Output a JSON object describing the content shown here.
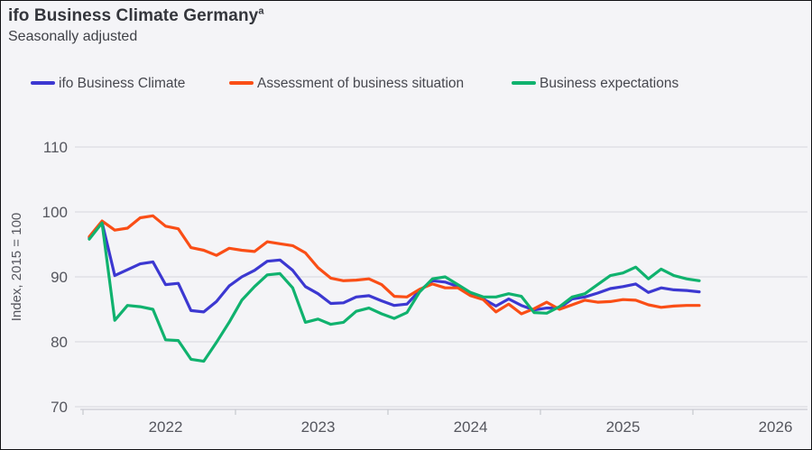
{
  "header": {
    "title": "ifo Business Climate Germany",
    "title_footnote_marker": "a",
    "subtitle": "Seasonally adjusted"
  },
  "colors": {
    "background": "#f4f4f7",
    "gridline": "#dcdce1",
    "axis_line": "#c9cbd1",
    "tick_label": "#55565e",
    "title_text": "#34363c"
  },
  "chart_data": {
    "type": "line",
    "title": "ifo Business Climate Germany",
    "subtitle": "Seasonally adjusted",
    "ylabel": "Index, 2015 = 100",
    "xlabel": "",
    "ylim": [
      70,
      113
    ],
    "y_ticks": [
      110,
      100,
      90,
      80,
      70
    ],
    "x_ticks": [
      "2022",
      "2023",
      "2024",
      "2025",
      "2026"
    ],
    "grid": "horizontal-only",
    "legend_position": "top",
    "x_frequency": "monthly",
    "months": [
      "2022-01",
      "2022-02",
      "2022-03",
      "2022-04",
      "2022-05",
      "2022-06",
      "2022-07",
      "2022-08",
      "2022-09",
      "2022-10",
      "2022-11",
      "2022-12",
      "2023-01",
      "2023-02",
      "2023-03",
      "2023-04",
      "2023-05",
      "2023-06",
      "2023-07",
      "2023-08",
      "2023-09",
      "2023-10",
      "2023-11",
      "2023-12",
      "2024-01",
      "2024-02",
      "2024-03",
      "2024-04",
      "2024-05",
      "2024-06",
      "2024-07",
      "2024-08",
      "2024-09",
      "2024-10",
      "2024-11",
      "2024-12",
      "2025-01",
      "2025-02",
      "2025-03",
      "2025-04",
      "2025-05",
      "2025-06",
      "2025-07",
      "2025-08",
      "2025-09",
      "2025-10",
      "2025-11",
      "2025-12",
      "2026-01"
    ],
    "series": [
      {
        "name": "ifo Business Climate",
        "color": "#3c38d1",
        "values": [
          96.0,
          98.4,
          90.2,
          91.1,
          92.0,
          92.3,
          88.8,
          89.0,
          84.8,
          84.6,
          86.2,
          88.6,
          90.0,
          91.0,
          92.4,
          92.6,
          91.0,
          88.5,
          87.4,
          85.9,
          86.0,
          86.9,
          87.1,
          86.3,
          85.6,
          85.8,
          87.9,
          89.4,
          89.2,
          88.5,
          87.2,
          86.6,
          85.5,
          86.6,
          85.6,
          84.9,
          85.2,
          85.2,
          86.6,
          86.9,
          87.5,
          88.2,
          88.5,
          88.9,
          87.6,
          88.3,
          88.0,
          87.9,
          87.7
        ]
      },
      {
        "name": "Assessment of business situation",
        "color": "#fa4e16",
        "values": [
          96.2,
          98.6,
          97.2,
          97.5,
          99.1,
          99.4,
          97.8,
          97.4,
          94.5,
          94.1,
          93.3,
          94.4,
          94.1,
          93.9,
          95.4,
          95.1,
          94.8,
          93.7,
          91.4,
          89.8,
          89.4,
          89.5,
          89.7,
          88.8,
          87.0,
          86.9,
          88.1,
          88.9,
          88.3,
          88.3,
          87.1,
          86.5,
          84.6,
          85.8,
          84.3,
          85.1,
          86.1,
          85.0,
          85.7,
          86.4,
          86.1,
          86.2,
          86.5,
          86.4,
          85.7,
          85.3,
          85.5,
          85.6,
          85.6
        ]
      },
      {
        "name": "Business expectations",
        "color": "#10b26e",
        "values": [
          95.8,
          98.3,
          83.3,
          85.6,
          85.4,
          85.0,
          80.3,
          80.2,
          77.3,
          77.0,
          79.9,
          83.0,
          86.4,
          88.5,
          90.3,
          90.5,
          88.3,
          83.0,
          83.5,
          82.7,
          83.0,
          84.7,
          85.2,
          84.3,
          83.6,
          84.5,
          87.7,
          89.7,
          90.0,
          88.8,
          87.6,
          86.9,
          86.9,
          87.4,
          87.0,
          84.5,
          84.4,
          85.4,
          86.9,
          87.4,
          88.8,
          90.2,
          90.6,
          91.5,
          89.7,
          91.2,
          90.2,
          89.7,
          89.4
        ]
      }
    ]
  }
}
